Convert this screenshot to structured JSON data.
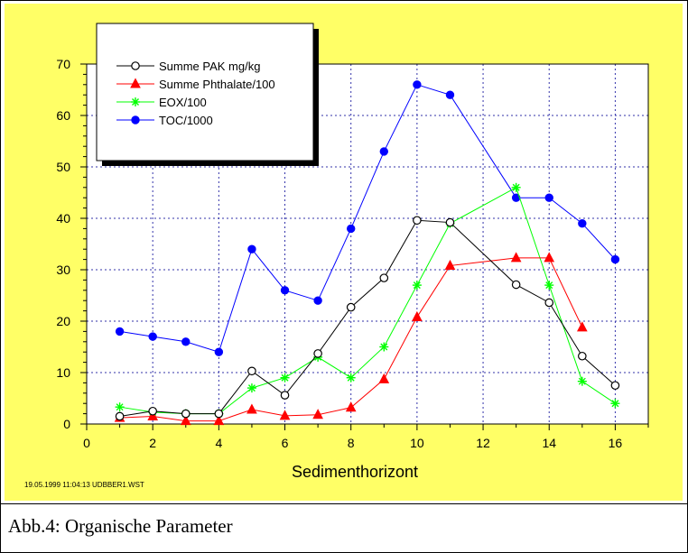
{
  "chart_data": {
    "type": "line",
    "title": "",
    "xlabel": "Sedimenthorizont",
    "ylabel": "",
    "xlim": [
      0,
      17
    ],
    "ylim": [
      0,
      70
    ],
    "xticks": [
      0,
      2,
      4,
      6,
      8,
      10,
      12,
      14,
      16
    ],
    "yticks": [
      0,
      10,
      20,
      30,
      40,
      50,
      60,
      70
    ],
    "grid": true,
    "legend_position": "top-left",
    "series": [
      {
        "name": "Summe PAK mg/kg",
        "color": "#000000",
        "marker": "open-circle",
        "x": [
          1,
          2,
          3,
          4,
          5,
          6,
          7,
          8,
          9,
          10,
          11,
          13,
          14,
          15,
          16
        ],
        "y": [
          1.5,
          2.5,
          2,
          2,
          10.3,
          5.6,
          13.7,
          22.7,
          28.4,
          39.6,
          39.2,
          27.1,
          23.6,
          13.2,
          7.5
        ]
      },
      {
        "name": "Summe Phthalate/100",
        "color": "#ff0000",
        "marker": "triangle",
        "x": [
          1,
          2,
          3,
          4,
          5,
          6,
          7,
          8,
          9,
          10,
          11,
          13,
          14,
          15
        ],
        "y": [
          1.2,
          1.5,
          0.6,
          0.6,
          2.8,
          1.6,
          1.8,
          3.2,
          8.7,
          20.8,
          30.8,
          32.3,
          32.3,
          18.8
        ]
      },
      {
        "name": "EOX/100",
        "color": "#00ff00",
        "marker": "asterisk",
        "x": [
          1,
          2,
          3,
          4,
          5,
          6,
          7,
          8,
          9,
          10,
          11,
          13,
          14,
          15,
          16
        ],
        "y": [
          3.3,
          2.3,
          2,
          2,
          7,
          9,
          13,
          9,
          15,
          27,
          39,
          46,
          27,
          8.3,
          4
        ]
      },
      {
        "name": "TOC/1000",
        "color": "#0000ff",
        "marker": "filled-circle",
        "x": [
          1,
          2,
          3,
          4,
          5,
          6,
          7,
          8,
          9,
          10,
          11,
          13,
          14,
          15,
          16
        ],
        "y": [
          18,
          17,
          16,
          14,
          34,
          26,
          24,
          38,
          53,
          66,
          64,
          44,
          44,
          39,
          32
        ]
      }
    ]
  },
  "footer": {
    "timestamp": "19.05.1999  11:04:13  UDBBER1.WST",
    "caption": "Abb.4: Organische Parameter"
  }
}
